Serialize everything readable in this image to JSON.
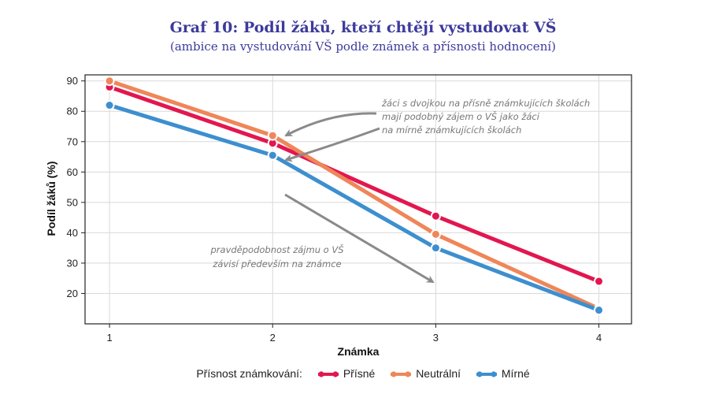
{
  "chart_data": {
    "type": "line",
    "title": "Graf 10: Podíl žáků, kteří chtějí vystudovat VŠ",
    "subtitle": "(ambice na vystudování VŠ podle známek a přísnosti hodnocení)",
    "xlabel": "Známka",
    "ylabel": "Podíl žáků (%)",
    "x": [
      1,
      2,
      3,
      4
    ],
    "xlim": [
      0.85,
      4.2
    ],
    "ylim": [
      10,
      92
    ],
    "yticks": [
      20,
      30,
      40,
      50,
      60,
      70,
      80,
      90
    ],
    "grid": true,
    "legend_title": "Přísnost známkování:",
    "legend_position": "bottom",
    "series": [
      {
        "name": "Přísné",
        "values": [
          88,
          69.5,
          45.5,
          24
        ],
        "color": "#e2174f"
      },
      {
        "name": "Neutrální",
        "values": [
          90,
          72,
          39.5,
          15
        ],
        "color": "#ef8659"
      },
      {
        "name": "Mírné",
        "values": [
          82,
          65.5,
          35,
          14.5
        ],
        "color": "#3d8fcf"
      }
    ],
    "annotations": [
      {
        "lines": [
          "žáci s dvojkou na přísně známkujících školách",
          "mají podobný zájem o VŠ jako žáci",
          "na mírně známkujících školách"
        ]
      },
      {
        "lines": [
          "pravděpodobnost zájmu o VŠ",
          "závisí především na známce"
        ]
      }
    ]
  }
}
